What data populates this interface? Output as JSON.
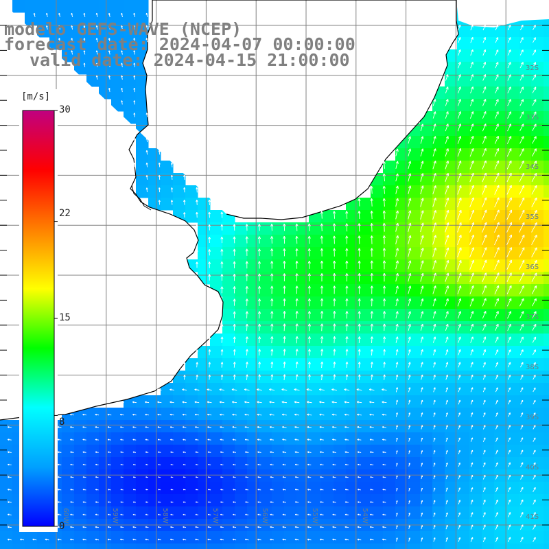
{
  "title": {
    "line1": "modelo GEFS-WAVE (NCEP)",
    "line2": "forecast date: 2024-04-07 00:00:00",
    "line3": "valid date: 2024-04-15 21:00:00"
  },
  "colorbar": {
    "unit": "[m/s]",
    "ticks": [
      "30",
      "22",
      "15",
      "8",
      "0"
    ],
    "tick_values": [
      30,
      22,
      15,
      8,
      0
    ],
    "min": 0,
    "max": 30,
    "colors": [
      "#0000ff",
      "#00a0ff",
      "#00ffff",
      "#00ff00",
      "#ffff00",
      "#ff8000",
      "#ff0000",
      "#c00080"
    ]
  },
  "map": {
    "lon_range": [
      -61.0,
      -50.0
    ],
    "lat_range": [
      -41.2,
      -30.2
    ],
    "lat_labels": [
      "32S",
      "33S",
      "34S",
      "35S",
      "36S",
      "37S",
      "38S",
      "39S",
      "40S",
      "41S"
    ],
    "lon_labels": [
      "60W",
      "59W",
      "58W",
      "57W",
      "56W",
      "55W",
      "54W"
    ],
    "land_color": "#ffffff",
    "coast_color": "#000000",
    "grid_color": "#808080",
    "arrow_color": "#ffffff",
    "field": "wind speed"
  }
}
